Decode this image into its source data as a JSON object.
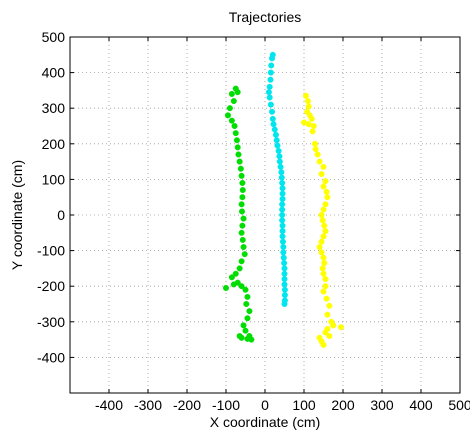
{
  "chart_data": {
    "type": "scatter",
    "title": "Trajectories",
    "xlabel": "X coordinate (cm)",
    "ylabel": "Y coordinate (cm)",
    "xlim": [
      -500,
      500
    ],
    "ylim": [
      -500,
      500
    ],
    "xticks": [
      -400,
      -300,
      -200,
      -100,
      0,
      100,
      200,
      300,
      400,
      500
    ],
    "yticks": [
      -400,
      -300,
      -200,
      -100,
      0,
      100,
      200,
      300,
      400,
      500
    ],
    "grid": true,
    "series": [
      {
        "color": "#00dd00",
        "points": [
          [
            -75,
            355
          ],
          [
            -70,
            345
          ],
          [
            -85,
            340
          ],
          [
            -80,
            320
          ],
          [
            -90,
            300
          ],
          [
            -95,
            280
          ],
          [
            -85,
            265
          ],
          [
            -78,
            250
          ],
          [
            -75,
            230
          ],
          [
            -72,
            210
          ],
          [
            -70,
            190
          ],
          [
            -68,
            170
          ],
          [
            -65,
            150
          ],
          [
            -62,
            130
          ],
          [
            -60,
            110
          ],
          [
            -58,
            90
          ],
          [
            -57,
            70
          ],
          [
            -58,
            50
          ],
          [
            -60,
            30
          ],
          [
            -59,
            10
          ],
          [
            -55,
            -10
          ],
          [
            -58,
            -30
          ],
          [
            -60,
            -50
          ],
          [
            -57,
            -70
          ],
          [
            -55,
            -90
          ],
          [
            -52,
            -110
          ],
          [
            -60,
            -130
          ],
          [
            -65,
            -150
          ],
          [
            -75,
            -165
          ],
          [
            -85,
            -175
          ],
          [
            -80,
            -195
          ],
          [
            -100,
            -205
          ],
          [
            -70,
            -190
          ],
          [
            -60,
            -200
          ],
          [
            -50,
            -210
          ],
          [
            -45,
            -230
          ],
          [
            -48,
            -250
          ],
          [
            -40,
            -270
          ],
          [
            -45,
            -290
          ],
          [
            -55,
            -310
          ],
          [
            -50,
            -325
          ],
          [
            -65,
            -340
          ],
          [
            -60,
            -345
          ],
          [
            -45,
            -348
          ],
          [
            -35,
            -350
          ],
          [
            -40,
            -340
          ]
        ]
      },
      {
        "color": "#00e5ee",
        "points": [
          [
            20,
            450
          ],
          [
            18,
            440
          ],
          [
            16,
            420
          ],
          [
            15,
            400
          ],
          [
            14,
            380
          ],
          [
            12,
            360
          ],
          [
            10,
            345
          ],
          [
            12,
            330
          ],
          [
            15,
            310
          ],
          [
            18,
            290
          ],
          [
            20,
            270
          ],
          [
            22,
            255
          ],
          [
            25,
            240
          ],
          [
            28,
            225
          ],
          [
            30,
            210
          ],
          [
            32,
            195
          ],
          [
            35,
            180
          ],
          [
            37,
            165
          ],
          [
            38,
            150
          ],
          [
            40,
            135
          ],
          [
            42,
            120
          ],
          [
            43,
            105
          ],
          [
            44,
            90
          ],
          [
            45,
            75
          ],
          [
            45,
            60
          ],
          [
            45,
            45
          ],
          [
            44,
            30
          ],
          [
            44,
            15
          ],
          [
            44,
            0
          ],
          [
            44,
            -15
          ],
          [
            45,
            -30
          ],
          [
            45,
            -45
          ],
          [
            45,
            -60
          ],
          [
            46,
            -75
          ],
          [
            47,
            -90
          ],
          [
            47,
            -105
          ],
          [
            48,
            -120
          ],
          [
            49,
            -135
          ],
          [
            50,
            -150
          ],
          [
            50,
            -165
          ],
          [
            50,
            -180
          ],
          [
            50,
            -195
          ],
          [
            51,
            -210
          ],
          [
            51,
            -225
          ],
          [
            51,
            -240
          ],
          [
            50,
            -250
          ]
        ]
      },
      {
        "color": "#ffff00",
        "points": [
          [
            105,
            335
          ],
          [
            110,
            320
          ],
          [
            112,
            305
          ],
          [
            108,
            290
          ],
          [
            115,
            280
          ],
          [
            120,
            270
          ],
          [
            100,
            260
          ],
          [
            112,
            255
          ],
          [
            125,
            250
          ],
          [
            122,
            235
          ],
          [
            128,
            200
          ],
          [
            130,
            185
          ],
          [
            135,
            170
          ],
          [
            140,
            150
          ],
          [
            150,
            135
          ],
          [
            145,
            115
          ],
          [
            155,
            95
          ],
          [
            150,
            80
          ],
          [
            158,
            65
          ],
          [
            160,
            50
          ],
          [
            155,
            30
          ],
          [
            150,
            15
          ],
          [
            145,
            0
          ],
          [
            148,
            -15
          ],
          [
            152,
            -30
          ],
          [
            155,
            -45
          ],
          [
            150,
            -60
          ],
          [
            145,
            -75
          ],
          [
            140,
            -90
          ],
          [
            145,
            -105
          ],
          [
            150,
            -120
          ],
          [
            152,
            -135
          ],
          [
            148,
            -150
          ],
          [
            150,
            -165
          ],
          [
            155,
            -180
          ],
          [
            155,
            -200
          ],
          [
            150,
            -215
          ],
          [
            158,
            -235
          ],
          [
            165,
            -255
          ],
          [
            160,
            -280
          ],
          [
            170,
            -300
          ],
          [
            175,
            -310
          ],
          [
            195,
            -315
          ],
          [
            160,
            -320
          ],
          [
            155,
            -330
          ],
          [
            165,
            -340
          ],
          [
            145,
            -355
          ],
          [
            140,
            -345
          ],
          [
            150,
            -365
          ]
        ]
      }
    ]
  }
}
